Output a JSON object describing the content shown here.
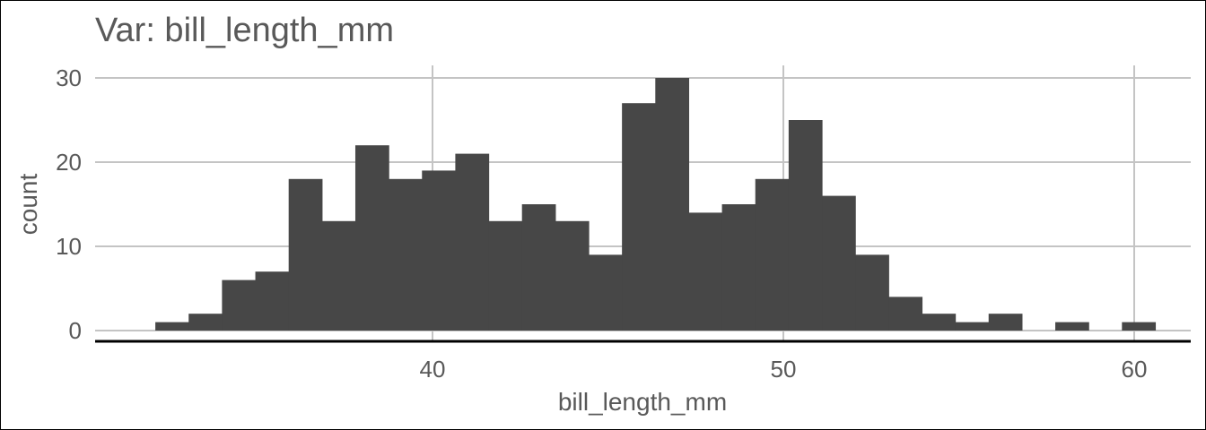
{
  "chart_data": {
    "type": "bar",
    "title": "Var: bill_length_mm",
    "xlabel": "bill_length_mm",
    "ylabel": "count",
    "xlim": [
      31.0,
      62.0
    ],
    "ylim": [
      0,
      30
    ],
    "x_ticks": [
      40,
      50,
      60
    ],
    "y_ticks": [
      0,
      10,
      20,
      30
    ],
    "grid": true,
    "bar_color": "#474747",
    "bin_width": 0.95,
    "bins": [
      {
        "start": 32.1,
        "end": 33.05,
        "count": 1
      },
      {
        "start": 33.05,
        "end": 34.0,
        "count": 2
      },
      {
        "start": 34.0,
        "end": 34.95,
        "count": 6
      },
      {
        "start": 34.95,
        "end": 35.9,
        "count": 7
      },
      {
        "start": 35.9,
        "end": 36.85,
        "count": 18
      },
      {
        "start": 36.85,
        "end": 37.8,
        "count": 13
      },
      {
        "start": 37.8,
        "end": 38.75,
        "count": 22
      },
      {
        "start": 38.75,
        "end": 39.7,
        "count": 18
      },
      {
        "start": 39.7,
        "end": 40.65,
        "count": 19
      },
      {
        "start": 40.65,
        "end": 41.6,
        "count": 21
      },
      {
        "start": 41.6,
        "end": 42.55,
        "count": 13
      },
      {
        "start": 42.55,
        "end": 43.5,
        "count": 15
      },
      {
        "start": 43.5,
        "end": 44.45,
        "count": 13
      },
      {
        "start": 44.45,
        "end": 45.4,
        "count": 9
      },
      {
        "start": 45.4,
        "end": 46.35,
        "count": 27
      },
      {
        "start": 46.35,
        "end": 47.3,
        "count": 30
      },
      {
        "start": 47.3,
        "end": 48.25,
        "count": 14
      },
      {
        "start": 48.25,
        "end": 49.2,
        "count": 15
      },
      {
        "start": 49.2,
        "end": 50.15,
        "count": 18
      },
      {
        "start": 50.15,
        "end": 51.1,
        "count": 25
      },
      {
        "start": 51.1,
        "end": 52.05,
        "count": 16
      },
      {
        "start": 52.05,
        "end": 53.0,
        "count": 9
      },
      {
        "start": 53.0,
        "end": 53.95,
        "count": 4
      },
      {
        "start": 53.95,
        "end": 54.9,
        "count": 2
      },
      {
        "start": 54.9,
        "end": 55.85,
        "count": 1
      },
      {
        "start": 55.85,
        "end": 56.8,
        "count": 2
      },
      {
        "start": 56.8,
        "end": 57.75,
        "count": 0
      },
      {
        "start": 57.75,
        "end": 58.7,
        "count": 1
      },
      {
        "start": 58.7,
        "end": 59.65,
        "count": 0
      },
      {
        "start": 59.65,
        "end": 60.6,
        "count": 1
      }
    ]
  }
}
